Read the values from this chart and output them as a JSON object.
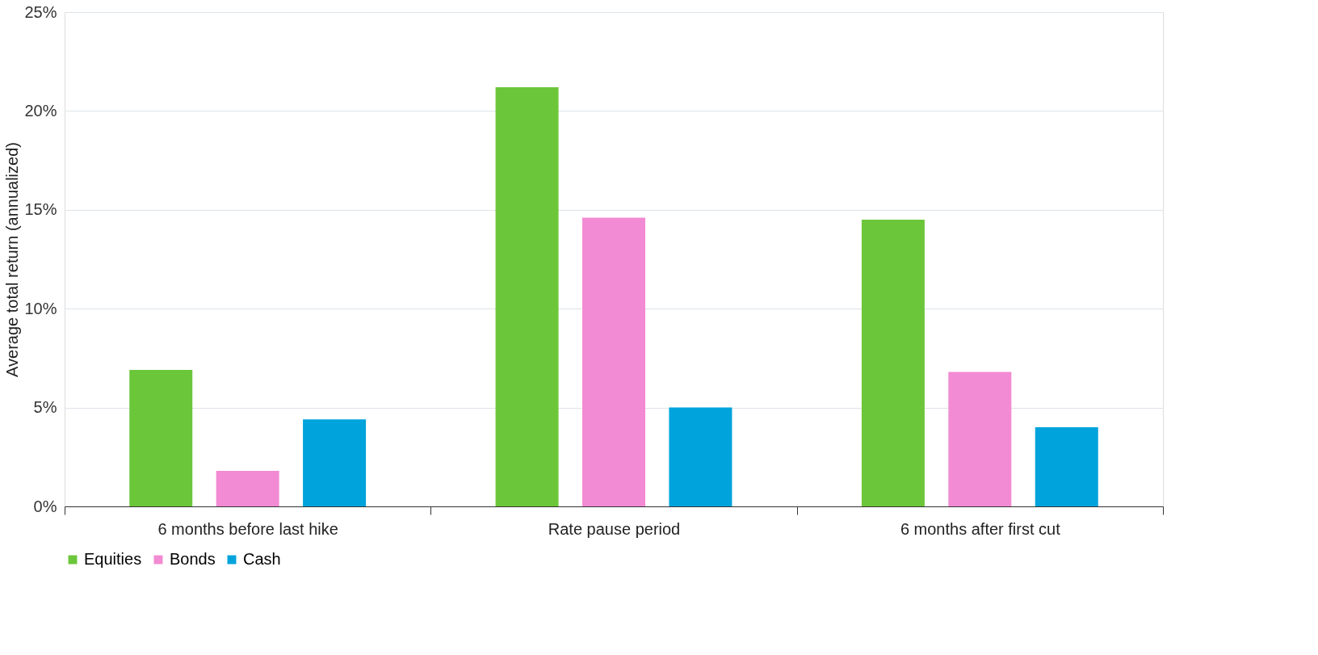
{
  "chart_data": {
    "type": "bar",
    "ylabel": "Average total return (annualized)",
    "categories": [
      "6 months before last hike",
      "Rate pause period",
      "6 months after first cut"
    ],
    "series": [
      {
        "name": "Equities",
        "color": "#6cc63a",
        "values": [
          6.9,
          21.2,
          14.5
        ]
      },
      {
        "name": "Bonds",
        "color": "#f28bd3",
        "values": [
          1.8,
          14.6,
          6.8
        ]
      },
      {
        "name": "Cash",
        "color": "#00a3dc",
        "values": [
          4.4,
          5.0,
          4.0
        ]
      }
    ],
    "ylim": [
      0,
      25
    ],
    "yticks": [
      {
        "value": 0,
        "label": "0%"
      },
      {
        "value": 5,
        "label": "5%"
      },
      {
        "value": 10,
        "label": "10%"
      },
      {
        "value": 15,
        "label": "15%"
      },
      {
        "value": 20,
        "label": "20%"
      },
      {
        "value": 25,
        "label": "25%"
      }
    ],
    "grid": "y",
    "legend": "bottom"
  }
}
